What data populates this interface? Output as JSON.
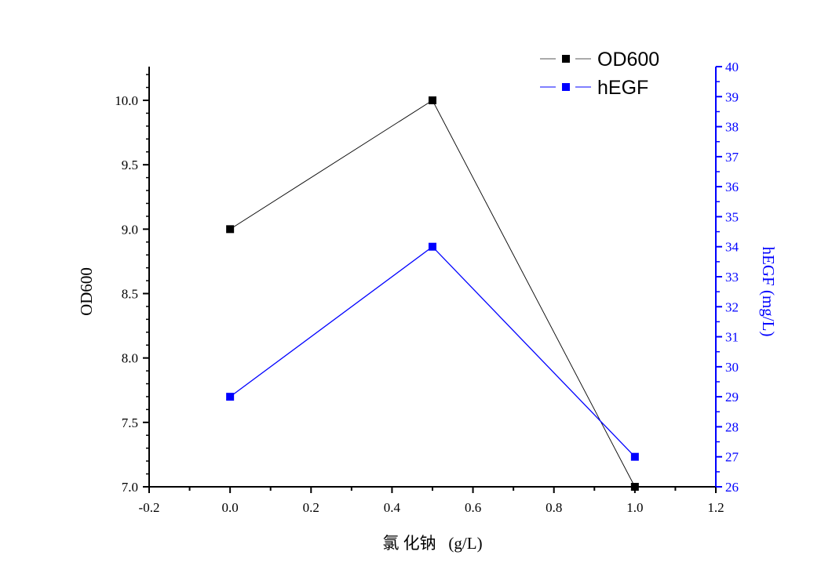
{
  "chart_data": {
    "type": "line",
    "title": "",
    "xlabel": "氯 化钠   (g/L)",
    "ylabel": "OD600",
    "y2label": "hEGF (mg/L)",
    "xlim": [
      -0.2,
      1.2
    ],
    "ylim": [
      7.0,
      10.26
    ],
    "y2lim": [
      26,
      40
    ],
    "grid": false,
    "legend_position": "top-right",
    "x": [
      0.0,
      0.5,
      1.0
    ],
    "x_ticks": [
      "-0.2",
      "0.0",
      "0.2",
      "0.4",
      "0.6",
      "0.8",
      "1.0",
      "1.2"
    ],
    "y_ticks": [
      "7.0",
      "7.5",
      "8.0",
      "8.5",
      "9.0",
      "9.5",
      "10.0"
    ],
    "y2_ticks": [
      "26",
      "27",
      "28",
      "29",
      "30",
      "31",
      "32",
      "33",
      "34",
      "35",
      "36",
      "37",
      "38",
      "39",
      "40"
    ],
    "series": [
      {
        "name": "OD600",
        "axis": "left",
        "values": [
          9.0,
          10.0,
          7.0
        ],
        "color": "#000000"
      },
      {
        "name": "hEGF",
        "axis": "right",
        "values": [
          29,
          34,
          27
        ],
        "color": "#0000ff"
      }
    ]
  }
}
